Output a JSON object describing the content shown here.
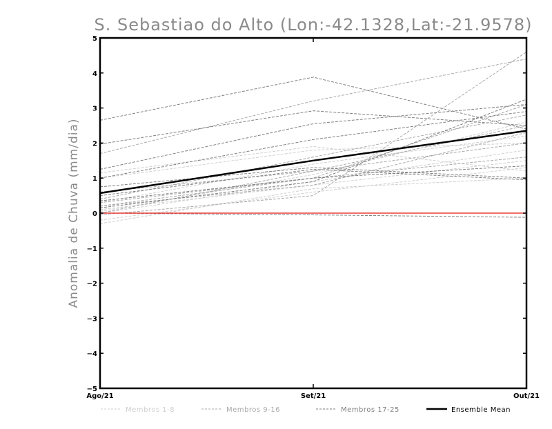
{
  "chart_data": {
    "type": "line",
    "title": "S. Sebastiao do Alto (Lon:-42.1328,Lat:-21.9578)",
    "ylabel": "Anomalia de Chuva (mm/dia)",
    "xlabel": "",
    "categories": [
      "Ago/21",
      "Set/21",
      "Out/21"
    ],
    "ylim": [
      -5,
      5
    ],
    "yticks": [
      -5,
      -4,
      -3,
      -2,
      -1,
      0,
      1,
      2,
      3,
      4,
      5
    ],
    "grid": false,
    "legend": "bottom",
    "zero_line": {
      "value": 0,
      "color": "#e8413b"
    },
    "groups": [
      {
        "name": "Membros 1-8",
        "color": "#cfcfcf"
      },
      {
        "name": "Membros 9-16",
        "color": "#a9a9a9"
      },
      {
        "name": "Membros 17-25",
        "color": "#7f7f7f"
      }
    ],
    "ensemble_mean": {
      "name": "Ensemble Mean",
      "color": "#000000",
      "values": [
        0.57,
        1.5,
        2.35
      ]
    },
    "series": [
      {
        "group": 0,
        "values": [
          -0.3,
          0.7,
          1.0
        ]
      },
      {
        "group": 0,
        "values": [
          -0.2,
          0.6,
          1.3
        ]
      },
      {
        "group": 0,
        "values": [
          0.0,
          0.9,
          1.8
        ]
      },
      {
        "group": 0,
        "values": [
          0.05,
          1.1,
          2.6
        ]
      },
      {
        "group": 0,
        "values": [
          0.1,
          0.8,
          1.5
        ]
      },
      {
        "group": 0,
        "values": [
          1.0,
          1.8,
          2.0
        ]
      },
      {
        "group": 0,
        "values": [
          0.3,
          1.4,
          2.2
        ]
      },
      {
        "group": 0,
        "values": [
          1.15,
          1.9,
          1.2
        ]
      },
      {
        "group": 1,
        "values": [
          1.7,
          3.2,
          4.4
        ]
      },
      {
        "group": 1,
        "values": [
          0.4,
          1.6,
          2.8
        ]
      },
      {
        "group": 1,
        "values": [
          0.2,
          1.0,
          1.6
        ]
      },
      {
        "group": 1,
        "values": [
          -0.05,
          0.5,
          4.6
        ]
      },
      {
        "group": 1,
        "values": [
          0.0,
          1.2,
          2.5
        ]
      },
      {
        "group": 1,
        "values": [
          0.2,
          0.8,
          2.3
        ]
      },
      {
        "group": 1,
        "values": [
          0.3,
          1.0,
          3.1
        ]
      },
      {
        "group": 1,
        "values": [
          0.6,
          1.2,
          2.0
        ]
      },
      {
        "group": 2,
        "values": [
          2.65,
          3.88,
          2.4
        ]
      },
      {
        "group": 2,
        "values": [
          1.97,
          2.92,
          2.5
        ]
      },
      {
        "group": 2,
        "values": [
          1.25,
          2.55,
          3.1
        ]
      },
      {
        "group": 2,
        "values": [
          1.0,
          2.1,
          2.9
        ]
      },
      {
        "group": 2,
        "values": [
          0.75,
          1.3,
          1.0
        ]
      },
      {
        "group": 2,
        "values": [
          0.5,
          1.25,
          0.95
        ]
      },
      {
        "group": 2,
        "values": [
          0.0,
          -0.05,
          -0.12
        ]
      },
      {
        "group": 2,
        "values": [
          0.15,
          0.9,
          3.25
        ]
      },
      {
        "group": 2,
        "values": [
          0.35,
          1.0,
          1.35
        ]
      }
    ]
  }
}
